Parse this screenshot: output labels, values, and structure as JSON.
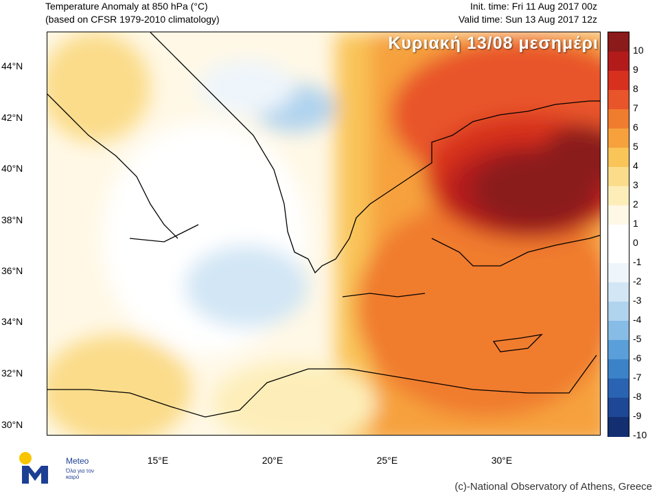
{
  "header": {
    "title_line1": "Temperature Anomaly at 850 hPa (°C)",
    "title_line2": "(based on CFSR 1979-2010 climatology)",
    "init_time": "Init. time: Fri 11 Aug 2017 00z",
    "valid_time": "Valid time: Sun 13 Aug 2017 12z"
  },
  "overlay_text": "Κυριακή 13/08 μεσημέρι",
  "map": {
    "lat_ticks": [
      "44°N",
      "42°N",
      "40°N",
      "38°N",
      "36°N",
      "34°N",
      "32°N",
      "30°N"
    ],
    "lon_ticks": [
      "15°E",
      "20°E",
      "25°E",
      "30°E"
    ]
  },
  "colorbar": {
    "labels": [
      "10",
      "9",
      "8",
      "7",
      "6",
      "5",
      "4",
      "3",
      "2",
      "1",
      "0",
      "-1",
      "-2",
      "-3",
      "-4",
      "-5",
      "-6",
      "-7",
      "-8",
      "-9",
      "-10"
    ],
    "colors": [
      "#8b1a1a",
      "#b31b1b",
      "#d7301f",
      "#e8552a",
      "#f07c2e",
      "#f6a13c",
      "#f9c458",
      "#fbdc8a",
      "#fdeeb9",
      "#fff8e6",
      "#ffffff",
      "#ffffff",
      "#eef5fb",
      "#d2e6f5",
      "#b0d3ee",
      "#86bce6",
      "#5a9fd9",
      "#3b82c9",
      "#2a63b2",
      "#1e4795",
      "#132f72"
    ]
  },
  "logo": {
    "name": "Meteo",
    "tagline": "Όλα για τον καιρό"
  },
  "copyright": "(c)-National Observatory of Athens, Greece"
}
